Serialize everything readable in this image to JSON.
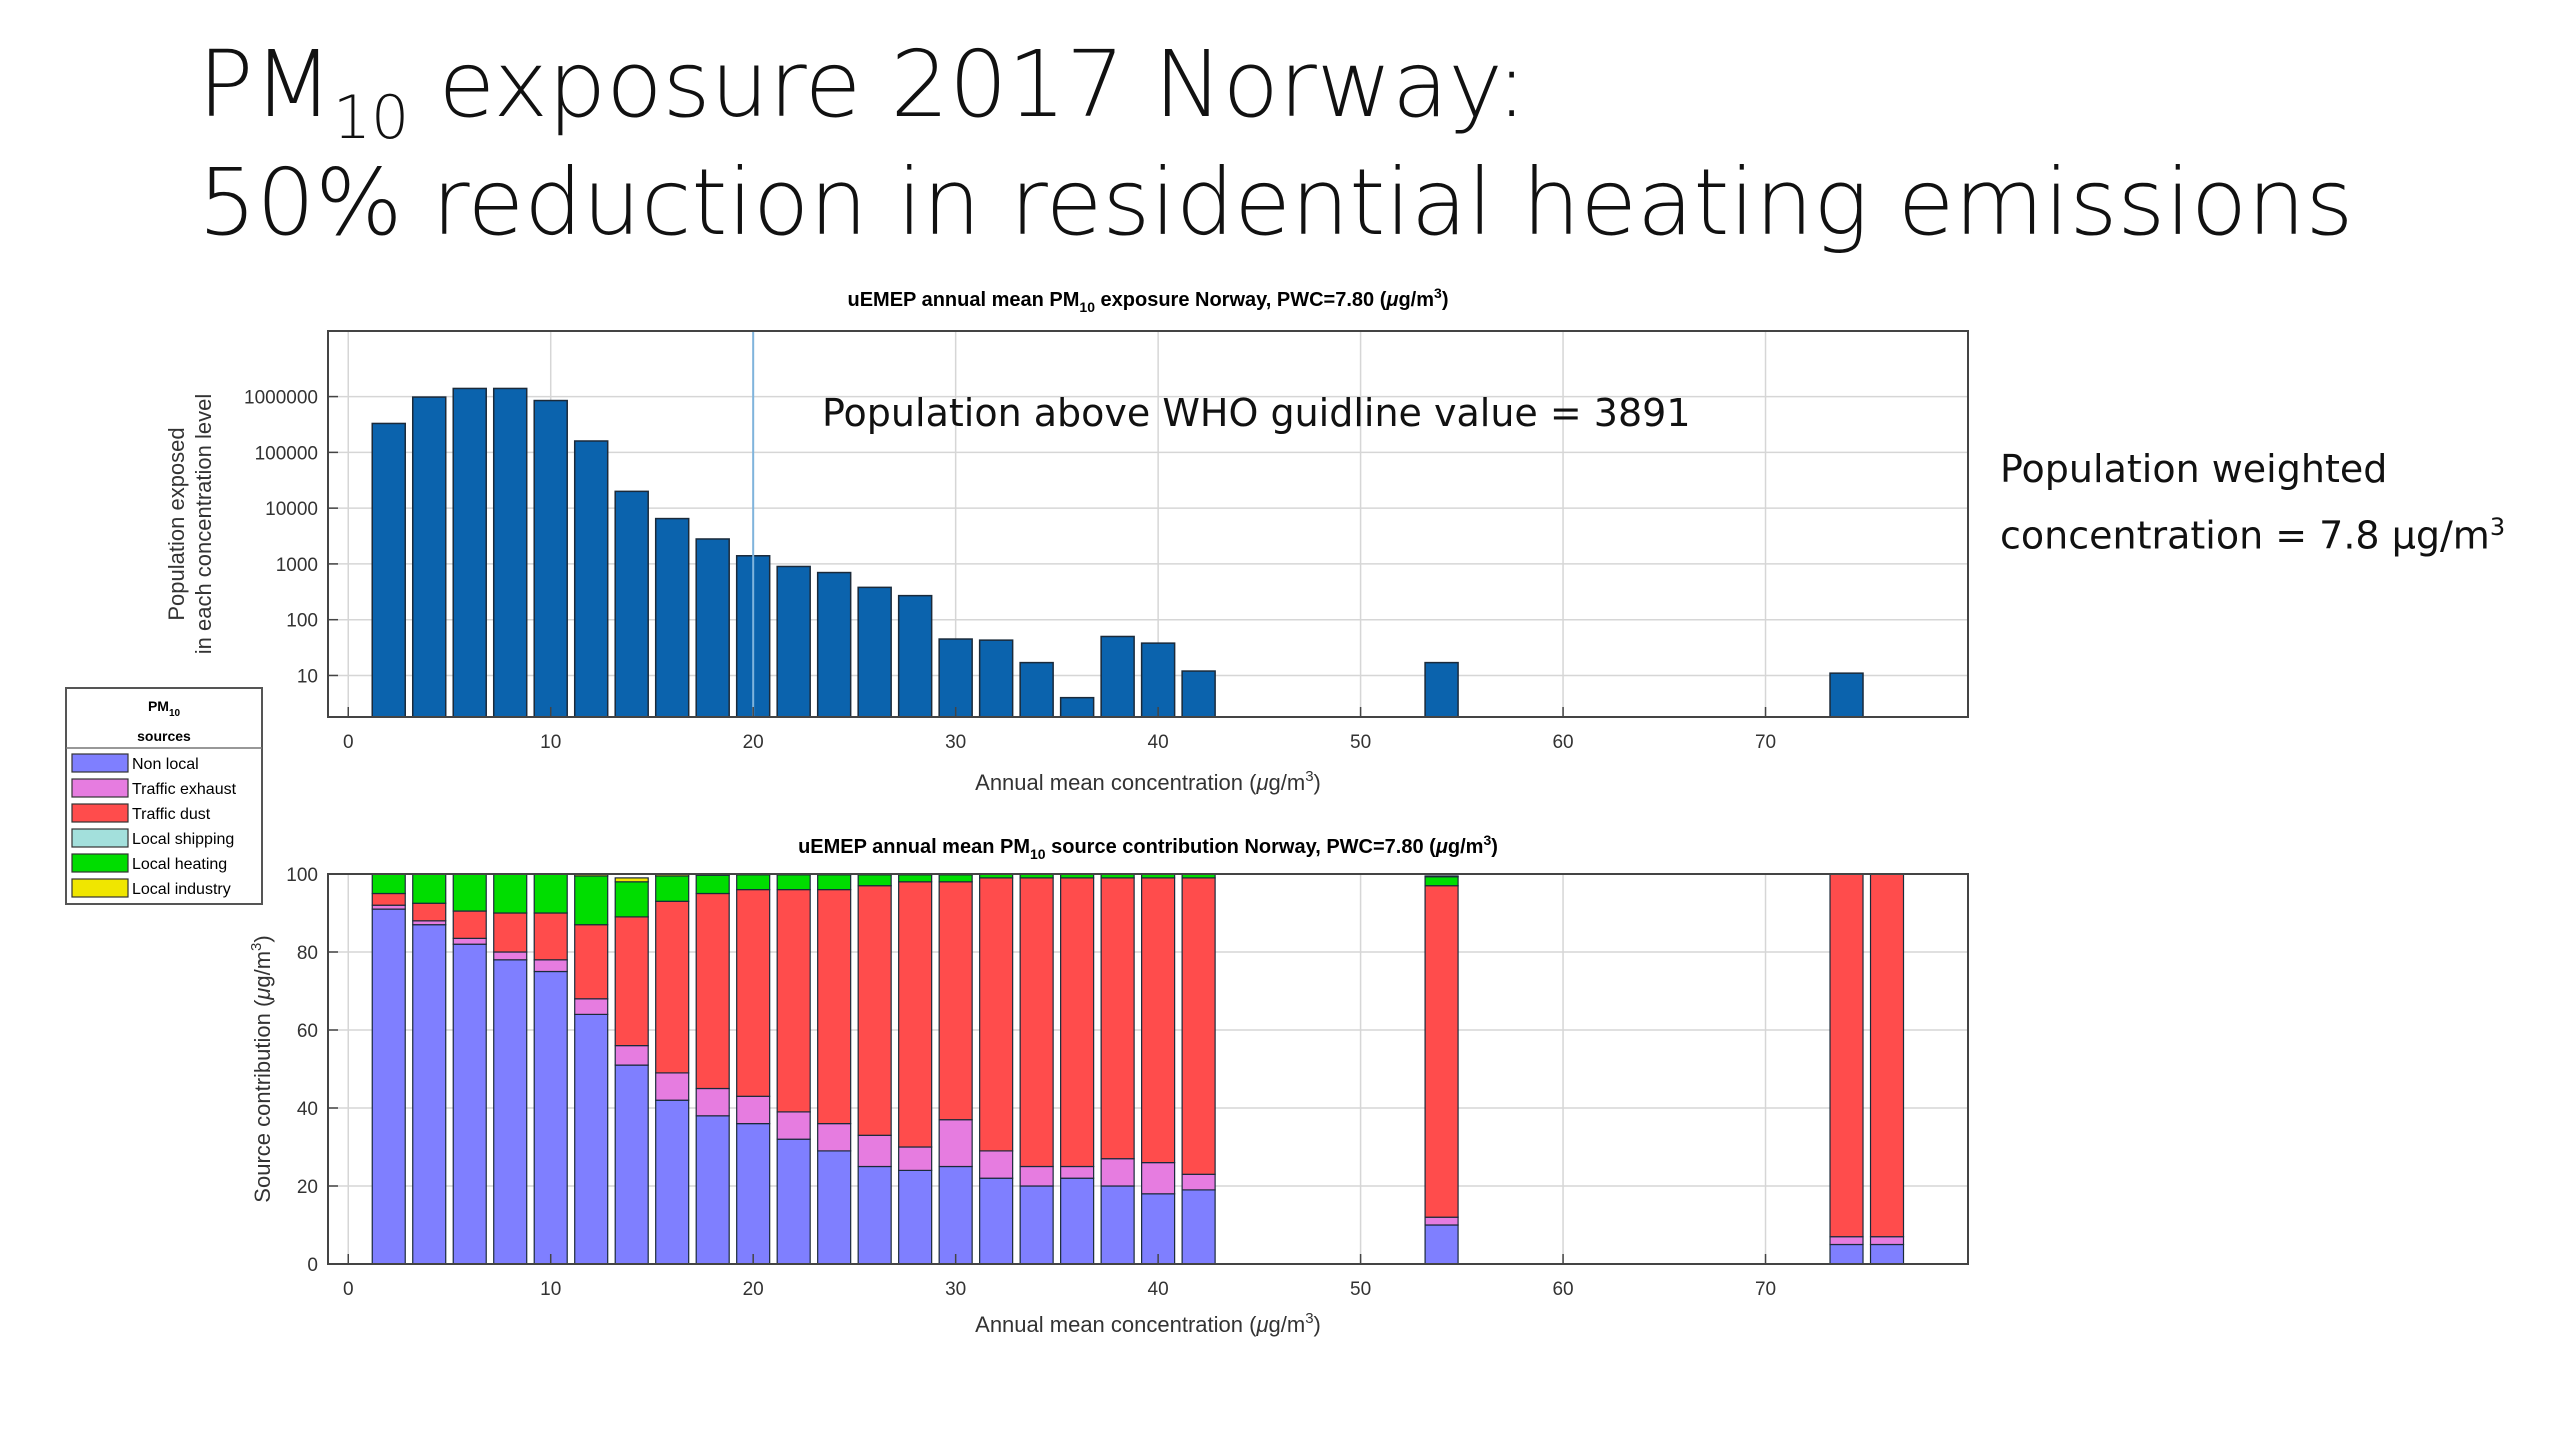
{
  "slide": {
    "title_line1_a": "PM",
    "title_line1_sub": "10",
    "title_line1_b": " exposure 2017 Norway:",
    "title_line2": "50% reduction in residential heating emissions",
    "pwc_line1": "Population weighted",
    "pwc_line2": "concentration =  7.8 µg/m",
    "pwc_sup": "3"
  },
  "colors": {
    "exposure_bar": "#0b63ad",
    "guideline_line": "#7fb4dc",
    "non_local": "#7f7fff",
    "traffic_exhaust": "#e67ce0",
    "traffic_dust": "#ff4c4c",
    "local_shipping": "#a3e0dc",
    "local_heating": "#00dd00",
    "local_industry": "#f0e600"
  },
  "chart_data": [
    {
      "type": "bar",
      "title_a": "uEMEP annual mean PM",
      "title_sub": "10",
      "title_b": " exposure Norway, PWC=7.80 (",
      "title_mu": "μ",
      "title_c": "g/m",
      "title_sup": "3",
      "title_d": ")",
      "xlabel_a": "Annual mean concentration (",
      "xlabel_mu": "μ",
      "xlabel_b": "g/m",
      "xlabel_sup": "3",
      "xlabel_c": ")",
      "ylabel_line1": "Population exposed",
      "ylabel_line2": "in each concentration level",
      "yscale": "log",
      "xlim": [
        -1,
        80
      ],
      "ylim": [
        1.8,
        15000000
      ],
      "xticks": [
        "0",
        "10",
        "20",
        "30",
        "40",
        "50",
        "60",
        "70"
      ],
      "yticks": [
        "10",
        "100",
        "1000",
        "10000",
        "100000",
        "1000000"
      ],
      "grid": true,
      "annotation": "Population above WHO guidline value = 3891",
      "guideline_x": 20,
      "x": [
        2,
        4,
        6,
        8,
        10,
        12,
        14,
        16,
        18,
        20,
        22,
        24,
        26,
        28,
        30,
        32,
        34,
        36,
        38,
        40,
        42,
        54,
        74
      ],
      "values": [
        330000,
        980000,
        1400000,
        1400000,
        850000,
        160000,
        20000,
        6500,
        2800,
        1400,
        900,
        700,
        380,
        270,
        45,
        43,
        17,
        4,
        50,
        38,
        12,
        17,
        11
      ]
    },
    {
      "type": "bar",
      "stacked": true,
      "title_a": "uEMEP annual mean PM",
      "title_sub": "10",
      "title_b": " source contribution Norway, PWC=7.80 (",
      "title_mu": "μ",
      "title_c": "g/m",
      "title_sup": "3",
      "title_d": ")",
      "xlabel_a": "Annual mean concentration (",
      "xlabel_mu": "μ",
      "xlabel_b": "g/m",
      "xlabel_sup": "3",
      "xlabel_c": ")",
      "ylabel_a": "Source contribution (",
      "ylabel_mu": "μ",
      "ylabel_b": "g/m",
      "ylabel_sup": "3",
      "ylabel_c": ")",
      "xlim": [
        -1,
        80
      ],
      "ylim": [
        0,
        100
      ],
      "xticks": [
        "0",
        "10",
        "20",
        "30",
        "40",
        "50",
        "60",
        "70"
      ],
      "yticks": [
        "0",
        "20",
        "40",
        "60",
        "80",
        "100"
      ],
      "grid": true,
      "legend_position": "left-outside",
      "legend_title": "PM",
      "legend_title_sub": "10",
      "legend_title_2": "sources",
      "x": [
        2,
        4,
        6,
        8,
        10,
        12,
        14,
        16,
        18,
        20,
        22,
        24,
        26,
        28,
        30,
        32,
        34,
        36,
        38,
        40,
        42,
        54,
        74,
        76
      ],
      "series": [
        {
          "name": "Non local",
          "color_key": "non_local",
          "values": [
            91,
            87,
            82,
            78,
            75,
            64,
            51,
            42,
            38,
            36,
            32,
            29,
            25,
            24,
            25,
            22,
            20,
            22,
            20,
            18,
            19,
            10,
            5,
            5
          ]
        },
        {
          "name": "Traffic exhaust",
          "color_key": "traffic_exhaust",
          "values": [
            1,
            1,
            1.5,
            2,
            3,
            4,
            5,
            7,
            7,
            7,
            7,
            7,
            8,
            6,
            12,
            7,
            5,
            3,
            7,
            8,
            4,
            2,
            2,
            2
          ]
        },
        {
          "name": "Traffic dust",
          "color_key": "traffic_dust",
          "values": [
            3,
            4.5,
            7,
            10,
            12,
            19,
            33,
            44,
            50,
            53,
            57,
            60,
            64,
            68,
            61,
            70,
            74,
            74,
            72,
            73,
            76,
            85,
            93,
            93
          ]
        },
        {
          "name": "Local shipping",
          "color_key": "local_shipping",
          "values": [
            0,
            0,
            0,
            0,
            0,
            0,
            0,
            0,
            0,
            0,
            0,
            0,
            0,
            0,
            0,
            0,
            0,
            0,
            0,
            0,
            0,
            0,
            0,
            0
          ]
        },
        {
          "name": "Local heating",
          "color_key": "local_heating",
          "values": [
            5,
            7.5,
            9.5,
            10,
            10,
            12.5,
            9,
            6.5,
            4.7,
            3.8,
            3.8,
            3.8,
            2.8,
            1.8,
            1.8,
            0.9,
            0.9,
            0.9,
            0.9,
            0.9,
            0.9,
            2.3,
            0,
            0
          ]
        },
        {
          "name": "Local industry",
          "color_key": "local_industry",
          "values": [
            0,
            0,
            0,
            0,
            0,
            0.5,
            1,
            0.5,
            0.3,
            0.2,
            0.2,
            0.2,
            0.2,
            0.2,
            0.2,
            0.1,
            0.1,
            0.1,
            0.1,
            0.1,
            0.1,
            0.2,
            0,
            0
          ]
        }
      ]
    }
  ]
}
